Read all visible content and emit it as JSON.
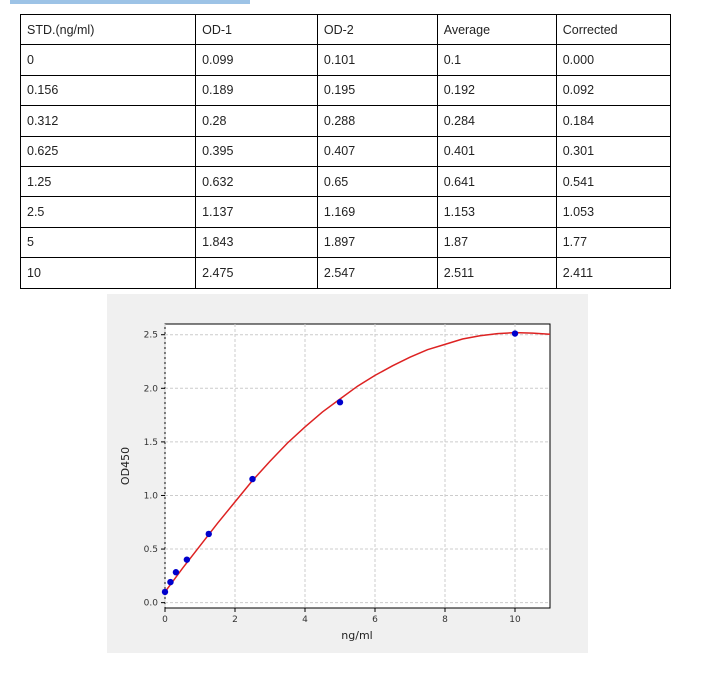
{
  "table": {
    "headers": [
      "STD.(ng/ml)",
      "OD-1",
      "OD-2",
      "Average",
      "Corrected"
    ],
    "rows": [
      [
        "0",
        "0.099",
        "0.101",
        "0.1",
        "0.000"
      ],
      [
        "0.156",
        "0.189",
        "0.195",
        "0.192",
        "0.092"
      ],
      [
        "0.312",
        "0.28",
        "0.288",
        "0.284",
        "0.184"
      ],
      [
        "0.625",
        "0.395",
        "0.407",
        "0.401",
        "0.301"
      ],
      [
        "1.25",
        "0.632",
        "0.65",
        "0.641",
        "0.541"
      ],
      [
        "2.5",
        "1.137",
        "1.169",
        "1.153",
        "1.053"
      ],
      [
        "5",
        "1.843",
        "1.897",
        "1.87",
        "1.77"
      ],
      [
        "10",
        "2.475",
        "2.547",
        "2.511",
        "2.411"
      ]
    ]
  },
  "chart_data": {
    "type": "scatter",
    "title": "",
    "xlabel": "ng/ml",
    "ylabel": "OD450",
    "xlim": [
      0,
      11
    ],
    "ylim": [
      -0.05,
      2.6
    ],
    "xticks": [
      "0",
      "2",
      "4",
      "6",
      "8",
      "10"
    ],
    "yticks": [
      "0.0",
      "0.5",
      "1.0",
      "1.5",
      "2.0",
      "2.5"
    ],
    "grid": true,
    "points": {
      "x": [
        0,
        0.156,
        0.312,
        0.625,
        1.25,
        2.5,
        5,
        10
      ],
      "y": [
        0.1,
        0.192,
        0.284,
        0.401,
        0.641,
        1.153,
        1.87,
        2.511
      ],
      "color": "#0000cc"
    },
    "fit_curve": {
      "x": [
        0,
        0.5,
        1,
        1.5,
        2,
        2.5,
        3,
        3.5,
        4,
        4.5,
        5,
        5.5,
        6,
        6.5,
        7,
        7.5,
        8,
        8.5,
        9,
        9.5,
        10,
        10.5,
        11
      ],
      "y": [
        0.1,
        0.32,
        0.53,
        0.74,
        0.94,
        1.14,
        1.32,
        1.49,
        1.64,
        1.78,
        1.9,
        2.02,
        2.12,
        2.21,
        2.29,
        2.36,
        2.41,
        2.46,
        2.49,
        2.51,
        2.52,
        2.515,
        2.505
      ],
      "color": "#dd2222"
    }
  }
}
